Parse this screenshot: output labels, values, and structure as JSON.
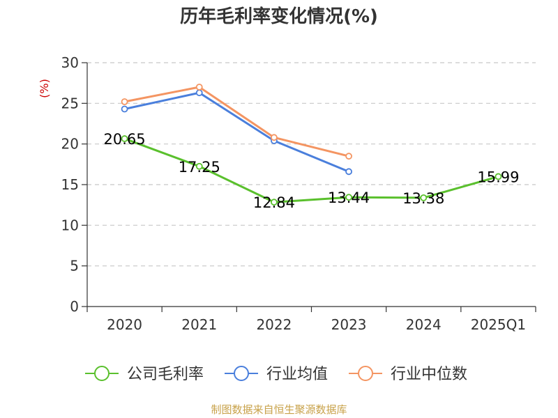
{
  "chart_data": {
    "type": "line",
    "title": "历年毛利率变化情况(%)",
    "ylabel": "(%)",
    "xlabel": "",
    "categories": [
      "2020",
      "2021",
      "2022",
      "2023",
      "2024",
      "2025Q1"
    ],
    "ylim": [
      0,
      30
    ],
    "yticks": [
      0,
      5,
      10,
      15,
      20,
      25,
      30
    ],
    "grid": true,
    "legend_position": "bottom",
    "series": [
      {
        "name": "公司毛利率",
        "color": "#5ac02d",
        "values": [
          20.65,
          17.25,
          12.84,
          13.44,
          13.38,
          15.99
        ],
        "labels": [
          "20.65",
          "17.25",
          "12.84",
          "13.44",
          "13.38",
          "15.99"
        ]
      },
      {
        "name": "行业均值",
        "color": "#4a7fdc",
        "values": [
          24.3,
          26.3,
          20.4,
          16.6,
          null,
          null
        ]
      },
      {
        "name": "行业中位数",
        "color": "#f49562",
        "values": [
          25.2,
          27.0,
          20.8,
          18.5,
          null,
          null
        ]
      }
    ],
    "source": "制图数据来自恒生聚源数据库"
  }
}
